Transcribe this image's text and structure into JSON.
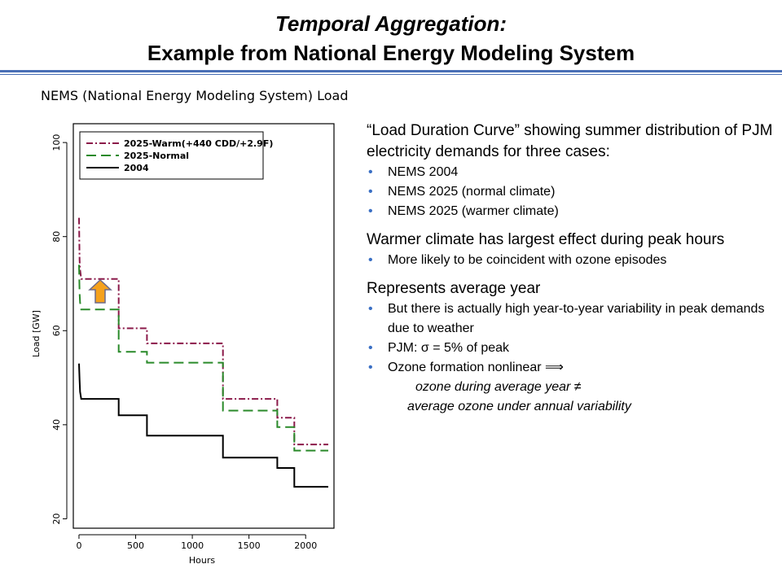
{
  "header": {
    "title_line1": "Temporal Aggregation:",
    "title_line2": "Example from National Energy Modeling System"
  },
  "chart_title": "NEMS (National Energy Modeling System) Load",
  "chart_data": {
    "type": "line",
    "xlabel": "Hours",
    "ylabel": "Load [GW]",
    "xlim": [
      -50,
      2250
    ],
    "ylim": [
      18,
      104
    ],
    "xticks": [
      0,
      500,
      1000,
      1500,
      2000
    ],
    "yticks": [
      20,
      40,
      60,
      80,
      100
    ],
    "legend_position": "top-left",
    "series": [
      {
        "name": "2025-Warm(+440 CDD/+2.9F)",
        "color": "#8b1a4a",
        "dash": "dashdot",
        "x": [
          0,
          5,
          10,
          20,
          350,
          350,
          600,
          600,
          1270,
          1270,
          1750,
          1750,
          1900,
          1900,
          2200
        ],
        "y": [
          84,
          75,
          73,
          71,
          71,
          60.5,
          60.5,
          57.3,
          57.3,
          45.5,
          45.5,
          41.5,
          41.5,
          35.8,
          35.8
        ]
      },
      {
        "name": "2025-Normal",
        "color": "#2a8a2a",
        "dash": "dashed",
        "x": [
          0,
          5,
          10,
          20,
          350,
          350,
          600,
          600,
          1270,
          1270,
          1750,
          1750,
          1900,
          1900,
          2200
        ],
        "y": [
          74,
          68,
          66,
          64.5,
          64.5,
          55.5,
          55.5,
          53.2,
          53.2,
          43,
          43,
          39.5,
          39.5,
          34.5,
          34.5
        ]
      },
      {
        "name": "2004",
        "color": "#000000",
        "dash": "solid",
        "x": [
          0,
          5,
          10,
          20,
          350,
          350,
          600,
          600,
          1270,
          1270,
          1750,
          1750,
          1900,
          1900,
          2200
        ],
        "y": [
          53,
          49.5,
          47,
          45.5,
          45.5,
          42,
          42,
          37.7,
          37.7,
          33,
          33,
          30.8,
          30.8,
          26.8,
          26.8
        ]
      }
    ]
  },
  "panel": {
    "intro": "“Load Duration Curve” showing summer distribution of PJM electricity demands for three cases:",
    "cases": [
      "NEMS 2004",
      "NEMS 2025 (normal climate)",
      "NEMS 2025 (warmer climate)"
    ],
    "warmer_heading": "Warmer climate has largest effect during peak hours",
    "warmer_bullets": [
      "More likely to be coincident with ozone episodes"
    ],
    "avg_heading": "Represents average year",
    "avg_bullet1": "But there is actually high year-to-year variability in peak demands due to weather",
    "avg_bullet2": "PJM: σ = 5% of peak",
    "avg_bullet3": "Ozone formation nonlinear ⟹",
    "ozone_line1": "ozone during average year ≠",
    "ozone_line2": "average ozone under annual variability"
  },
  "colors": {
    "rule": "#4a6fb5",
    "bullet": "#3a6fc4",
    "arrow_fill": "#f5a11c"
  }
}
